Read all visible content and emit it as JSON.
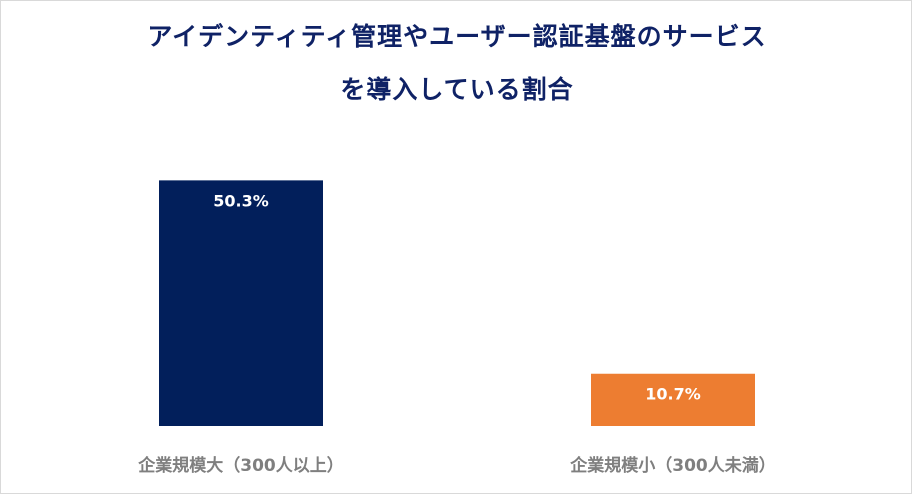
{
  "chart_data": {
    "type": "bar",
    "title_lines": [
      "アイデンティティ管理やユーザー認証基盤のサービス",
      "を導入している割合"
    ],
    "categories": [
      "企業規模大（300人以上）",
      "企業規模小（300人未満）"
    ],
    "values": [
      50.3,
      10.7
    ],
    "value_labels": [
      "50.3%",
      "10.7%"
    ],
    "colors": [
      "#021f5b",
      "#ed7d31"
    ],
    "ylim": [
      0,
      60
    ],
    "grid": false,
    "legend": "none"
  }
}
